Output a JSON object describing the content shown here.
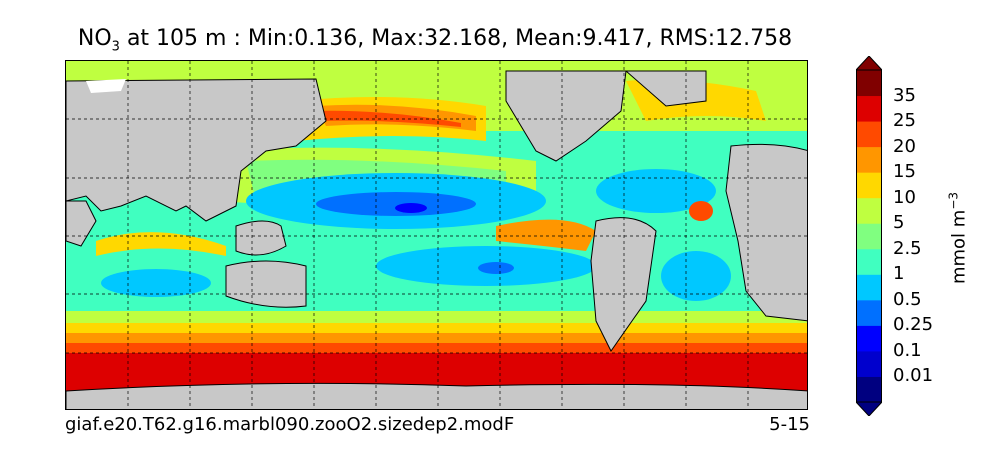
{
  "title": {
    "var_main": "NO",
    "var_sub": "3",
    "rest": " at 105 m : Min:0.136, Max:32.168, Mean:9.417, RMS:12.758"
  },
  "footer": {
    "case_name": "giaf.e20.T62.g16.marbl090.zooO2.sizedep2.modF",
    "period": "5-15"
  },
  "colorbar": {
    "units_main": "mmol m",
    "units_exp": "−3",
    "labels": [
      "35",
      "25",
      "20",
      "15",
      "10",
      "5",
      "2.5",
      "1",
      "0.5",
      "0.25",
      "0.1",
      "0.01"
    ],
    "colors": [
      "#000080",
      "#0000cd",
      "#0000ff",
      "#0070ff",
      "#00c8ff",
      "#40ffc0",
      "#80ff80",
      "#bfff40",
      "#ffd800",
      "#ff9600",
      "#ff4a00",
      "#dd0000",
      "#800000"
    ]
  },
  "map": {
    "land_color": "#c8c8c8",
    "no_data_color": "#ffffff"
  }
}
